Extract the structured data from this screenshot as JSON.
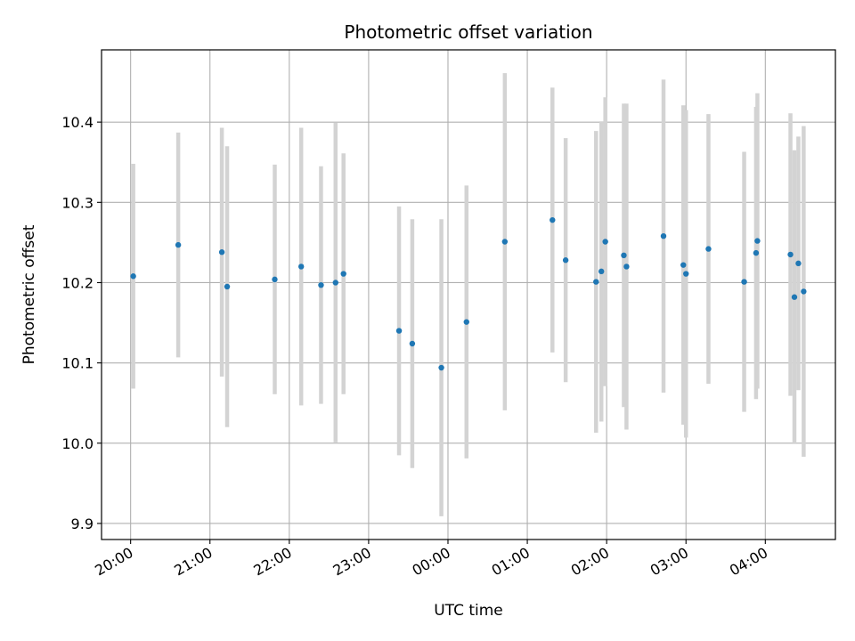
{
  "chart_data": {
    "type": "scatter",
    "title": "Photometric offset variation",
    "xlabel": "UTC time",
    "ylabel": "Photometric offset",
    "xlim": [
      "19:38",
      "04:53"
    ],
    "ylim": [
      9.88,
      10.49
    ],
    "x_ticks": [
      "20:00",
      "21:00",
      "22:00",
      "23:00",
      "00:00",
      "01:00",
      "02:00",
      "03:00",
      "04:00"
    ],
    "y_ticks": [
      9.9,
      10.0,
      10.1,
      10.2,
      10.3,
      10.4
    ],
    "y_tick_labels": [
      "9.9",
      "10.0",
      "10.1",
      "10.2",
      "10.3",
      "10.4"
    ],
    "grid": true,
    "colors": {
      "marker": "#1f77b4",
      "errorbar": "#d3d3d3",
      "grid": "#b0b0b0"
    },
    "series": [
      {
        "points": [
          {
            "x": "20:02",
            "y": 10.208,
            "lo": 10.068,
            "hi": 10.348
          },
          {
            "x": "20:36",
            "y": 10.247,
            "lo": 10.107,
            "hi": 10.387
          },
          {
            "x": "21:09",
            "y": 10.238,
            "lo": 10.083,
            "hi": 10.393
          },
          {
            "x": "21:13",
            "y": 10.195,
            "lo": 10.02,
            "hi": 10.37
          },
          {
            "x": "21:49",
            "y": 10.204,
            "lo": 10.061,
            "hi": 10.347
          },
          {
            "x": "22:09",
            "y": 10.22,
            "lo": 10.047,
            "hi": 10.393
          },
          {
            "x": "22:24",
            "y": 10.197,
            "lo": 10.049,
            "hi": 10.345
          },
          {
            "x": "22:35",
            "y": 10.2,
            "lo": 10.001,
            "hi": 10.399
          },
          {
            "x": "22:41",
            "y": 10.211,
            "lo": 10.061,
            "hi": 10.361
          },
          {
            "x": "23:23",
            "y": 10.14,
            "lo": 9.985,
            "hi": 10.295
          },
          {
            "x": "23:33",
            "y": 10.124,
            "lo": 9.969,
            "hi": 10.279
          },
          {
            "x": "23:55",
            "y": 10.094,
            "lo": 9.909,
            "hi": 10.279
          },
          {
            "x": "00:14",
            "y": 10.151,
            "lo": 9.981,
            "hi": 10.321
          },
          {
            "x": "00:43",
            "y": 10.251,
            "lo": 10.041,
            "hi": 10.461
          },
          {
            "x": "01:19",
            "y": 10.278,
            "lo": 10.113,
            "hi": 10.443
          },
          {
            "x": "01:29",
            "y": 10.228,
            "lo": 10.076,
            "hi": 10.38
          },
          {
            "x": "01:52",
            "y": 10.201,
            "lo": 10.013,
            "hi": 10.389
          },
          {
            "x": "01:56",
            "y": 10.214,
            "lo": 10.027,
            "hi": 10.401
          },
          {
            "x": "01:59",
            "y": 10.251,
            "lo": 10.071,
            "hi": 10.431
          },
          {
            "x": "02:13",
            "y": 10.234,
            "lo": 10.045,
            "hi": 10.423
          },
          {
            "x": "02:15",
            "y": 10.22,
            "lo": 10.017,
            "hi": 10.423
          },
          {
            "x": "02:43",
            "y": 10.258,
            "lo": 10.063,
            "hi": 10.453
          },
          {
            "x": "02:58",
            "y": 10.222,
            "lo": 10.023,
            "hi": 10.421
          },
          {
            "x": "03:00",
            "y": 10.211,
            "lo": 10.007,
            "hi": 10.415
          },
          {
            "x": "03:17",
            "y": 10.242,
            "lo": 10.074,
            "hi": 10.41
          },
          {
            "x": "03:44",
            "y": 10.201,
            "lo": 10.039,
            "hi": 10.363
          },
          {
            "x": "03:53",
            "y": 10.237,
            "lo": 10.055,
            "hi": 10.419
          },
          {
            "x": "03:54",
            "y": 10.252,
            "lo": 10.068,
            "hi": 10.436
          },
          {
            "x": "04:19",
            "y": 10.235,
            "lo": 10.059,
            "hi": 10.411
          },
          {
            "x": "04:22",
            "y": 10.182,
            "lo": 9.999,
            "hi": 10.365
          },
          {
            "x": "04:25",
            "y": 10.224,
            "lo": 10.066,
            "hi": 10.382
          },
          {
            "x": "04:29",
            "y": 10.189,
            "lo": 9.983,
            "hi": 10.395
          }
        ]
      }
    ]
  }
}
